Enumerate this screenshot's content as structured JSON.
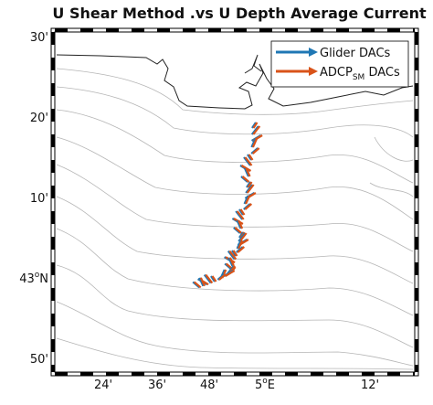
{
  "title": "U Shear Method .vs U Depth Average Current",
  "y_axis": {
    "ticks": [
      {
        "label": "30'"
      },
      {
        "label": "20'"
      },
      {
        "label": "10'"
      },
      {
        "label": "43",
        "sup": "o",
        "suffix": "N"
      },
      {
        "label": "50'"
      }
    ]
  },
  "x_axis": {
    "ticks": [
      {
        "label": "24'"
      },
      {
        "label": "36'"
      },
      {
        "label": "48'"
      },
      {
        "label": "5",
        "sup": "o",
        "suffix": "E"
      },
      {
        "label": "12'"
      }
    ]
  },
  "legend": [
    {
      "label": "Glider DACs",
      "color": "#1f77b4"
    },
    {
      "label": "ADCP",
      "subscript": "SM",
      "suffix": " DACs",
      "color": "#d95319"
    }
  ]
}
